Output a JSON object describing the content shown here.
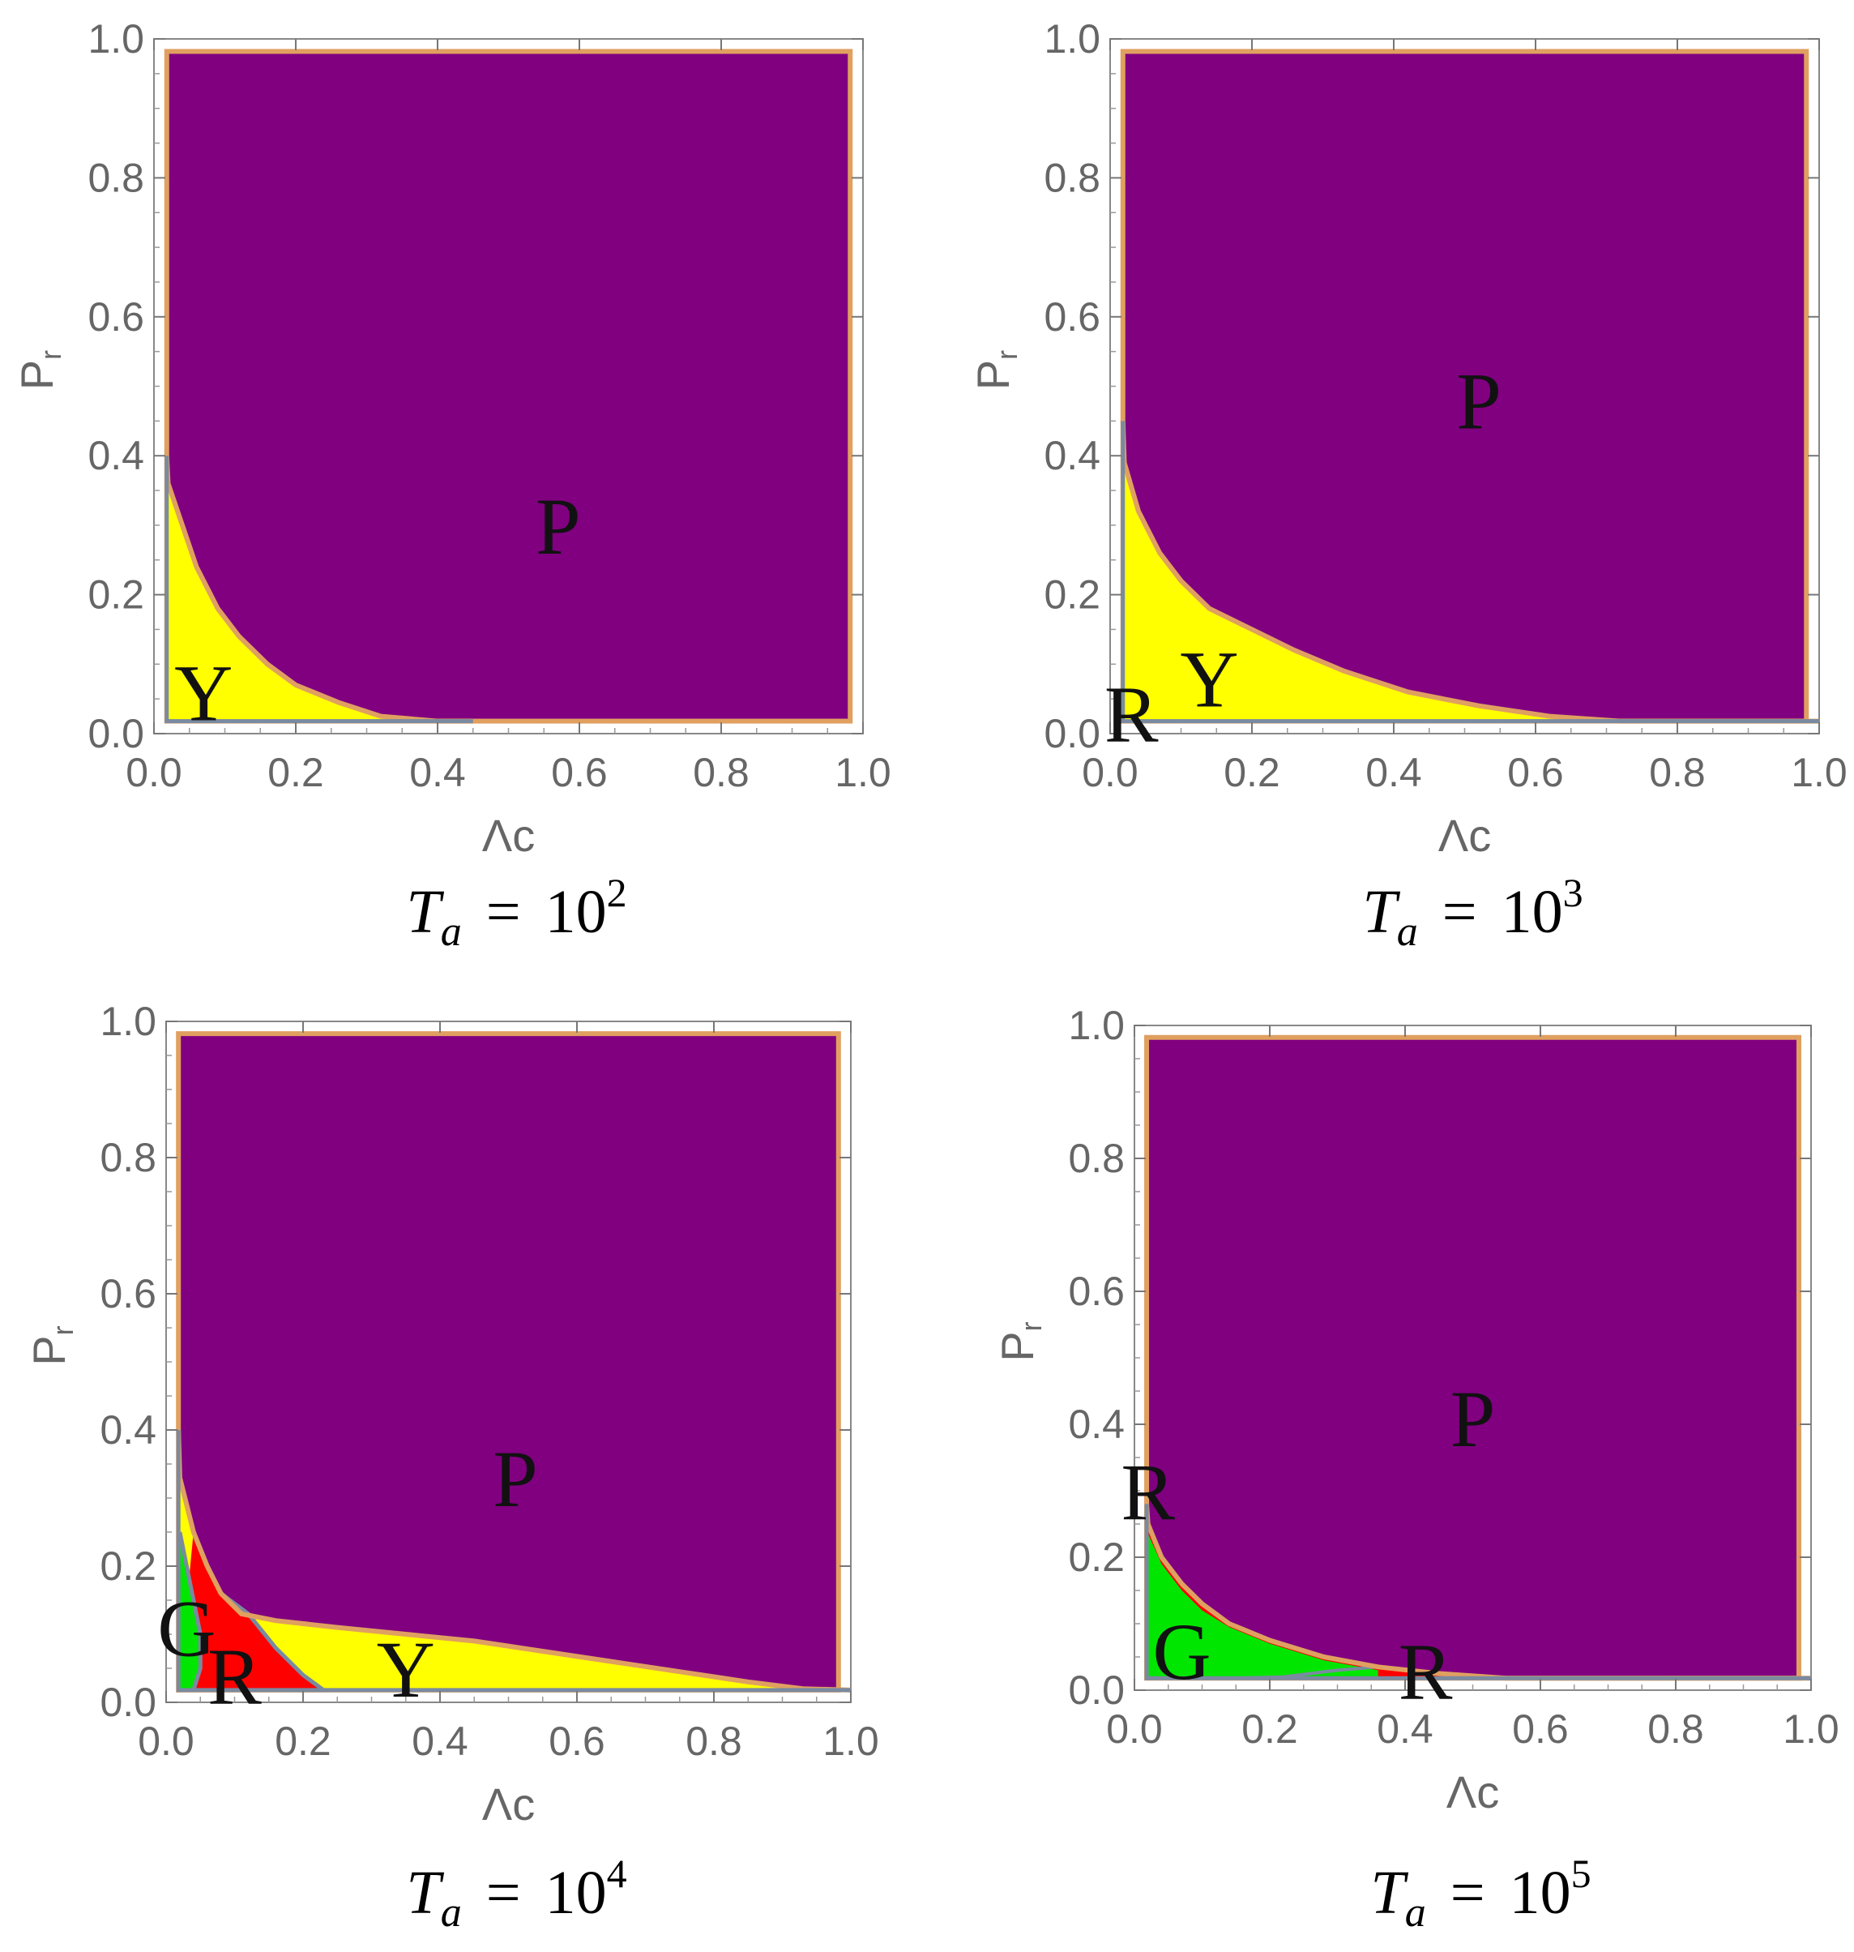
{
  "colors": {
    "purple": "#800080",
    "yellow": "#ffff00",
    "red": "#ff0000",
    "green": "#00e600",
    "boundary_orange": "#e0a060",
    "boundary_gray": "#7a8aa0",
    "tick_text": "#666666"
  },
  "chart_data": [
    {
      "type": "heatmap",
      "xlabel": "Λc",
      "ylabel": "P_r",
      "xlim": [
        0,
        1
      ],
      "ylim": [
        0,
        1
      ],
      "x_ticks": [
        "0.0",
        "0.2",
        "0.4",
        "0.6",
        "0.8",
        "1.0"
      ],
      "y_ticks": [
        "0.0",
        "0.2",
        "0.4",
        "0.6",
        "0.8",
        "1.0"
      ],
      "caption": {
        "symbol": "T",
        "subscript": "a",
        "equals": "=",
        "base": "10",
        "exponent": "2"
      },
      "regions": [
        {
          "label": "P",
          "color": "purple",
          "label_at": [
            0.57,
            0.3
          ]
        },
        {
          "label": "Y",
          "color": "yellow",
          "label_at": [
            0.07,
            0.06
          ]
        }
      ],
      "boundaries": [
        {
          "name": "yellow-purple",
          "points": [
            [
              0.01,
              0.4
            ],
            [
              0.02,
              0.36
            ],
            [
              0.04,
              0.3
            ],
            [
              0.06,
              0.24
            ],
            [
              0.09,
              0.18
            ],
            [
              0.12,
              0.14
            ],
            [
              0.16,
              0.1
            ],
            [
              0.2,
              0.07
            ],
            [
              0.26,
              0.045
            ],
            [
              0.32,
              0.025
            ],
            [
              0.4,
              0.012
            ],
            [
              0.45,
              0.005
            ]
          ]
        }
      ]
    },
    {
      "type": "heatmap",
      "xlabel": "Λc",
      "ylabel": "P_r",
      "xlim": [
        0,
        1
      ],
      "ylim": [
        0,
        1
      ],
      "x_ticks": [
        "0.0",
        "0.2",
        "0.4",
        "0.6",
        "0.8",
        "1.0"
      ],
      "y_ticks": [
        "0.0",
        "0.2",
        "0.4",
        "0.6",
        "0.8",
        "1.0"
      ],
      "caption": {
        "symbol": "T",
        "subscript": "a",
        "equals": "=",
        "base": "10",
        "exponent": "3"
      },
      "regions": [
        {
          "label": "P",
          "color": "purple",
          "label_at": [
            0.52,
            0.48
          ]
        },
        {
          "label": "Y",
          "color": "yellow",
          "label_at": [
            0.14,
            0.08
          ]
        },
        {
          "label": "R",
          "color": "red",
          "label_at": [
            0.03,
            0.03
          ]
        }
      ],
      "boundaries": [
        {
          "name": "yellow-purple",
          "points": [
            [
              0.01,
              0.45
            ],
            [
              0.02,
              0.39
            ],
            [
              0.04,
              0.32
            ],
            [
              0.07,
              0.26
            ],
            [
              0.1,
              0.22
            ],
            [
              0.14,
              0.18
            ],
            [
              0.2,
              0.15
            ],
            [
              0.26,
              0.12
            ],
            [
              0.33,
              0.09
            ],
            [
              0.42,
              0.06
            ],
            [
              0.52,
              0.04
            ],
            [
              0.62,
              0.025
            ],
            [
              0.72,
              0.015
            ],
            [
              0.85,
              0.008
            ],
            [
              1.0,
              0.005
            ]
          ]
        }
      ]
    },
    {
      "type": "heatmap",
      "xlabel": "Λc",
      "ylabel": "P_r",
      "xlim": [
        0,
        1
      ],
      "ylim": [
        0,
        1
      ],
      "x_ticks": [
        "0.0",
        "0.2",
        "0.4",
        "0.6",
        "0.8",
        "1.0"
      ],
      "y_ticks": [
        "0.0",
        "0.2",
        "0.4",
        "0.6",
        "0.8",
        "1.0"
      ],
      "caption": {
        "symbol": "T",
        "subscript": "a",
        "equals": "=",
        "base": "10",
        "exponent": "4"
      },
      "regions": [
        {
          "label": "P",
          "color": "purple",
          "label_at": [
            0.51,
            0.33
          ]
        },
        {
          "label": "Y",
          "color": "yellow",
          "label_at": [
            0.35,
            0.05
          ]
        },
        {
          "label": "G",
          "color": "green",
          "label_at": [
            0.03,
            0.11
          ]
        },
        {
          "label": "R",
          "color": "red",
          "label_at": [
            0.1,
            0.04
          ]
        }
      ],
      "boundaries": [
        {
          "name": "lower-purple",
          "points": [
            [
              0.01,
              0.4
            ],
            [
              0.02,
              0.33
            ],
            [
              0.04,
              0.25
            ],
            [
              0.06,
              0.2
            ],
            [
              0.08,
              0.16
            ],
            [
              0.11,
              0.13
            ],
            [
              0.16,
              0.12
            ],
            [
              0.25,
              0.11
            ],
            [
              0.35,
              0.1
            ],
            [
              0.45,
              0.09
            ],
            [
              0.55,
              0.075
            ],
            [
              0.65,
              0.06
            ],
            [
              0.75,
              0.045
            ],
            [
              0.85,
              0.03
            ],
            [
              0.93,
              0.02
            ],
            [
              1.0,
              0.015
            ]
          ]
        },
        {
          "name": "red-yellow",
          "points": [
            [
              0.08,
              0.16
            ],
            [
              0.12,
              0.13
            ],
            [
              0.16,
              0.08
            ],
            [
              0.2,
              0.04
            ],
            [
              0.23,
              0.005
            ]
          ]
        },
        {
          "name": "green-red",
          "points": [
            [
              0.02,
              0.25
            ],
            [
              0.03,
              0.2
            ],
            [
              0.04,
              0.15
            ],
            [
              0.05,
              0.1
            ],
            [
              0.05,
              0.05
            ],
            [
              0.04,
              0.005
            ]
          ]
        }
      ]
    },
    {
      "type": "heatmap",
      "xlabel": "Λc",
      "ylabel": "P_r",
      "xlim": [
        0,
        1
      ],
      "ylim": [
        0,
        1
      ],
      "x_ticks": [
        "0.0",
        "0.2",
        "0.4",
        "0.6",
        "0.8",
        "1.0"
      ],
      "y_ticks": [
        "0.0",
        "0.2",
        "0.4",
        "0.6",
        "0.8",
        "1.0"
      ],
      "caption": {
        "symbol": "T",
        "subscript": "a",
        "equals": "=",
        "base": "10",
        "exponent": "5"
      },
      "regions": [
        {
          "label": "P",
          "color": "purple",
          "label_at": [
            0.5,
            0.41
          ]
        },
        {
          "label": "R",
          "color": "red",
          "label_at": [
            0.02,
            0.3
          ]
        },
        {
          "label": "G",
          "color": "green",
          "label_at": [
            0.07,
            0.06
          ]
        },
        {
          "label": "R",
          "color": "red",
          "label_at": [
            0.43,
            0.03
          ]
        }
      ],
      "boundaries": [
        {
          "name": "lower-purple",
          "points": [
            [
              0.01,
              0.28
            ],
            [
              0.02,
              0.25
            ],
            [
              0.04,
              0.2
            ],
            [
              0.07,
              0.16
            ],
            [
              0.1,
              0.13
            ],
            [
              0.14,
              0.1
            ],
            [
              0.2,
              0.075
            ],
            [
              0.28,
              0.05
            ],
            [
              0.36,
              0.035
            ],
            [
              0.45,
              0.025
            ],
            [
              0.55,
              0.018
            ],
            [
              0.7,
              0.013
            ],
            [
              0.85,
              0.01
            ],
            [
              1.0,
              0.008
            ]
          ]
        },
        {
          "name": "green-edge",
          "points": [
            [
              0.36,
              0.035
            ],
            [
              0.3,
              0.03
            ],
            [
              0.22,
              0.02
            ],
            [
              0.15,
              0.012
            ],
            [
              0.08,
              0.005
            ]
          ]
        },
        {
          "name": "red-strip-upper",
          "points": [
            [
              0.36,
              0.035
            ],
            [
              0.45,
              0.025
            ],
            [
              0.55,
              0.018
            ],
            [
              0.7,
              0.013
            ],
            [
              0.85,
              0.01
            ],
            [
              1.0,
              0.008
            ]
          ]
        }
      ]
    }
  ]
}
